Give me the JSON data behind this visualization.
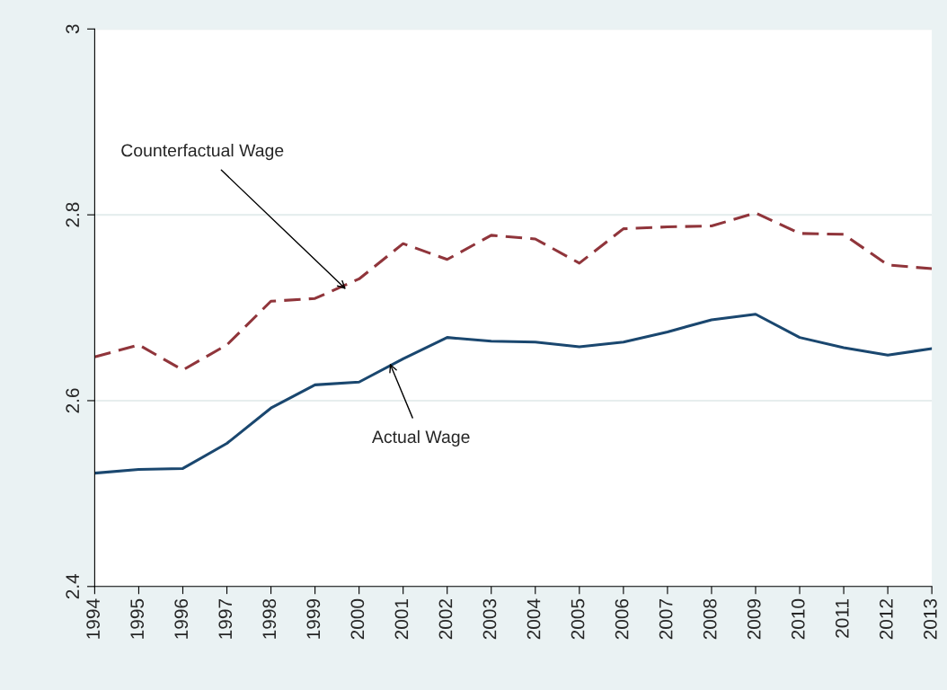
{
  "chart_data": {
    "type": "line",
    "x": [
      1994,
      1995,
      1996,
      1997,
      1998,
      1999,
      2000,
      2001,
      2002,
      2003,
      2004,
      2005,
      2006,
      2007,
      2008,
      2009,
      2010,
      2011,
      2012,
      2013
    ],
    "series": [
      {
        "color": "#90353b",
        "line_style": "dashed",
        "values": [
          2.647,
          2.66,
          2.633,
          2.66,
          2.707,
          2.71,
          2.731,
          2.769,
          2.752,
          2.778,
          2.774,
          2.748,
          2.785,
          2.787,
          2.788,
          2.802,
          2.78,
          2.779,
          2.746,
          2.742
        ]
      },
      {
        "color": "#1a476f",
        "line_style": "solid",
        "values": [
          2.522,
          2.526,
          2.527,
          2.554,
          2.592,
          2.617,
          2.62,
          2.645,
          2.668,
          2.664,
          2.663,
          2.658,
          2.663,
          2.674,
          2.687,
          2.693,
          2.668,
          2.657,
          2.649,
          2.656
        ]
      }
    ],
    "annotations": [
      {
        "text": "Counterfactual Wage",
        "x": 1999.7,
        "y": 2.72
      },
      {
        "text": "Actual Wage",
        "x": 2000.7,
        "y": 2.64
      }
    ],
    "xlim": [
      1994,
      2013
    ],
    "xticks": [
      1994,
      1995,
      1996,
      1997,
      1998,
      1999,
      2000,
      2001,
      2002,
      2003,
      2004,
      2005,
      2006,
      2007,
      2008,
      2009,
      2010,
      2011,
      2012,
      2013
    ],
    "ylim": [
      2.4,
      3
    ],
    "yticks": [
      {
        "value": 2.4,
        "label": "2.4"
      },
      {
        "value": 2.6,
        "label": "2.6"
      },
      {
        "value": 2.8,
        "label": "2.8"
      },
      {
        "value": 3,
        "label": "3"
      }
    ],
    "grid": "y",
    "legend": false
  }
}
